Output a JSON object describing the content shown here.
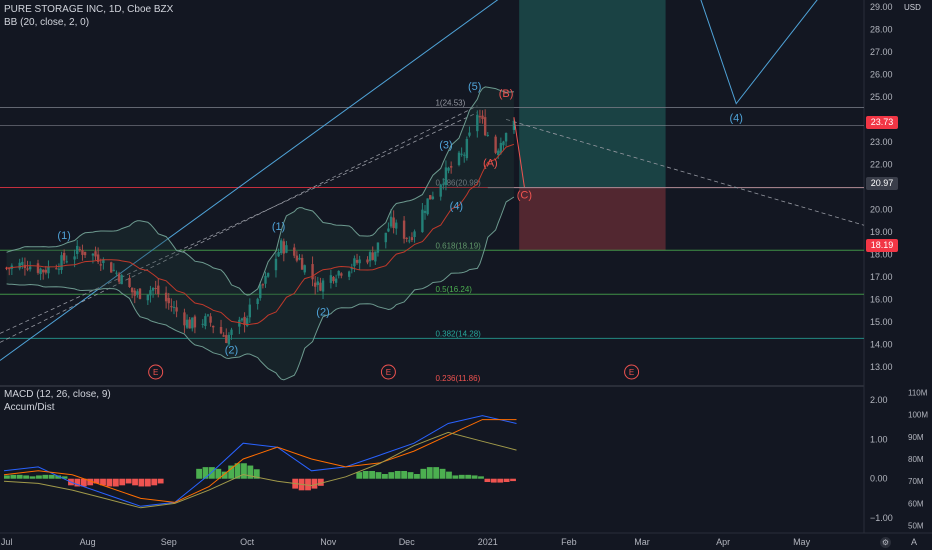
{
  "header": {
    "symbol_line": "PURE STORAGE INC, 1D, Cboe BZX",
    "bb_line": "BB (20, close, 2, 0)",
    "macd_line": "MACD (12, 26, close, 9)",
    "ad_line": "Accum/Dist"
  },
  "price_axis": {
    "currency": "USD",
    "ticks": [
      "29.00",
      "28.00",
      "27.00",
      "26.00",
      "25.00",
      "24.00",
      "23.00",
      "22.00",
      "21.00",
      "20.00",
      "19.00",
      "18.00",
      "17.00",
      "16.00",
      "15.00",
      "14.00",
      "13.00"
    ],
    "last_price_label": "23.73",
    "level_badges": [
      {
        "label": "20.97",
        "value": 20.97,
        "color": "#3a3e4a"
      },
      {
        "label": "18.19",
        "value": 18.19,
        "color": "#f23645"
      }
    ]
  },
  "macd_axis": {
    "ticks": [
      "2.00",
      "1.00",
      "0.00",
      "−1.00"
    ]
  },
  "ad_axis": {
    "ticks": [
      "110M",
      "100M",
      "90M",
      "80M",
      "70M",
      "60M",
      "50M"
    ]
  },
  "x_axis": {
    "labels": [
      "Jul",
      "Aug",
      "Sep",
      "Oct",
      "Nov",
      "Dec",
      "2021",
      "Feb",
      "Mar",
      "Apr",
      "May"
    ]
  },
  "footer_icons": [
    "gear-icon",
    "auto-scale-label"
  ],
  "footer_auto": "A",
  "colors": {
    "up": "#26a69a",
    "down": "#ef5350",
    "background": "#131722",
    "wave_blue": "#4fa3d8",
    "wave_red": "#ef5350",
    "grid": "#1e222d"
  },
  "chart_data": [
    {
      "type": "candlestick",
      "title": "PURE STORAGE INC, 1D, Cboe BZX",
      "ylabel": "USD",
      "ylim": [
        12.3,
        29.3
      ],
      "x_range": [
        "2020-06-30",
        "2021-05-31"
      ],
      "x_ticks": [
        "Jul",
        "Aug",
        "Sep",
        "Oct",
        "Nov",
        "Dec",
        "2021",
        "Feb",
        "Mar",
        "Apr",
        "May"
      ],
      "closes_approx": [
        {
          "date": "2020-07-01",
          "close": 17.4
        },
        {
          "date": "2020-07-08",
          "close": 17.6
        },
        {
          "date": "2020-07-15",
          "close": 17.3
        },
        {
          "date": "2020-07-22",
          "close": 17.7
        },
        {
          "date": "2020-07-29",
          "close": 18.2
        },
        {
          "date": "2020-08-05",
          "close": 17.9
        },
        {
          "date": "2020-08-12",
          "close": 17.2
        },
        {
          "date": "2020-08-19",
          "close": 16.2
        },
        {
          "date": "2020-08-26",
          "close": 16.5
        },
        {
          "date": "2020-09-02",
          "close": 15.7
        },
        {
          "date": "2020-09-09",
          "close": 14.9
        },
        {
          "date": "2020-09-16",
          "close": 15.1
        },
        {
          "date": "2020-09-23",
          "close": 14.3
        },
        {
          "date": "2020-09-30",
          "close": 15.1
        },
        {
          "date": "2020-10-07",
          "close": 16.6
        },
        {
          "date": "2020-10-14",
          "close": 18.4
        },
        {
          "date": "2020-10-21",
          "close": 17.8
        },
        {
          "date": "2020-10-28",
          "close": 16.6
        },
        {
          "date": "2020-11-04",
          "close": 17.2
        },
        {
          "date": "2020-11-11",
          "close": 17.6
        },
        {
          "date": "2020-11-18",
          "close": 18.0
        },
        {
          "date": "2020-11-25",
          "close": 19.4
        },
        {
          "date": "2020-12-02",
          "close": 18.7
        },
        {
          "date": "2020-12-09",
          "close": 20.4
        },
        {
          "date": "2020-12-16",
          "close": 21.6
        },
        {
          "date": "2020-12-23",
          "close": 22.5
        },
        {
          "date": "2020-12-28",
          "close": 24.3
        },
        {
          "date": "2021-01-04",
          "close": 22.6
        },
        {
          "date": "2021-01-08",
          "close": 23.5
        },
        {
          "date": "2021-01-11",
          "close": 23.73
        }
      ],
      "wave_labels": [
        {
          "text": "(1)",
          "date": "2020-07-23",
          "price": 18.7,
          "color": "blue"
        },
        {
          "text": "(2)",
          "date": "2020-09-25",
          "price": 13.6,
          "color": "blue"
        },
        {
          "text": "(1)",
          "date": "2020-10-13",
          "price": 19.1,
          "color": "blue"
        },
        {
          "text": "(2)",
          "date": "2020-10-30",
          "price": 15.3,
          "color": "blue"
        },
        {
          "text": "(3)",
          "date": "2020-12-16",
          "price": 22.7,
          "color": "blue"
        },
        {
          "text": "(4)",
          "date": "2020-12-20",
          "price": 20.0,
          "color": "blue"
        },
        {
          "text": "(5)",
          "date": "2020-12-27",
          "price": 25.3,
          "color": "blue"
        },
        {
          "text": "(B)",
          "date": "2021-01-08",
          "price": 25.0,
          "color": "red"
        },
        {
          "text": "(A)",
          "date": "2021-01-02",
          "price": 21.9,
          "color": "red"
        },
        {
          "text": "(C)",
          "date": "2021-01-15",
          "price": 20.5,
          "color": "red"
        },
        {
          "text": "(4)",
          "date": "2021-04-06",
          "price": 23.9,
          "color": "blue"
        }
      ],
      "fib_levels": [
        {
          "label": "1(24.53)",
          "value": 24.53
        },
        {
          "label": "0.786(20.98)",
          "value": 20.98
        },
        {
          "label": "0.618(18.19)",
          "value": 18.19
        },
        {
          "label": "0.5(16.24)",
          "value": 16.24
        },
        {
          "label": "0.382(14.28)",
          "value": 14.28
        },
        {
          "label": "0.236(11.86)",
          "value": 11.86
        }
      ],
      "earnings_markers": [
        {
          "label": "E",
          "date": "2020-08-27"
        },
        {
          "label": "E",
          "date": "2020-11-24"
        },
        {
          "label": "E",
          "date": "2021-02-25"
        }
      ],
      "position_box": {
        "start": "2021-01-13",
        "end": "2021-03-10",
        "entry": 20.97,
        "target": 29.5,
        "stop": 18.19
      },
      "projection_path": [
        {
          "date": "2021-04-06",
          "price": 24.7
        },
        {
          "date": "2021-03-10",
          "price": 30.5
        },
        {
          "date": "2021-05-15",
          "price": 30.5
        }
      ]
    },
    {
      "type": "line",
      "title": "MACD (12, 26, close, 9)",
      "ylim": [
        -1.3,
        2.3
      ],
      "series": [
        {
          "name": "MACD",
          "values_approx": [
            0.2,
            0.3,
            -0.1,
            -0.4,
            -0.7,
            -0.6,
            0.1,
            0.9,
            0.8,
            0.2,
            0.3,
            0.6,
            0.9,
            1.4,
            1.6,
            1.4
          ]
        },
        {
          "name": "Signal",
          "values_approx": [
            0.1,
            0.2,
            0.1,
            -0.2,
            -0.5,
            -0.6,
            -0.2,
            0.5,
            0.8,
            0.5,
            0.3,
            0.4,
            0.7,
            1.1,
            1.5,
            1.5
          ]
        }
      ],
      "histogram_approx": [
        0.1,
        0.1,
        -0.2,
        -0.2,
        -0.2,
        0.0,
        0.3,
        0.4,
        0.0,
        -0.3,
        0.0,
        0.2,
        0.2,
        0.3,
        0.1,
        -0.1
      ]
    },
    {
      "type": "line",
      "title": "Accum/Dist",
      "ylim": [
        48000000,
        112000000
      ],
      "series": [
        {
          "name": "Accum/Dist",
          "values_approx": [
            70,
            69,
            66,
            62,
            58,
            60,
            66,
            73,
            70,
            68,
            72,
            78,
            86,
            92,
            88,
            84
          ]
        }
      ],
      "units": "M"
    }
  ]
}
